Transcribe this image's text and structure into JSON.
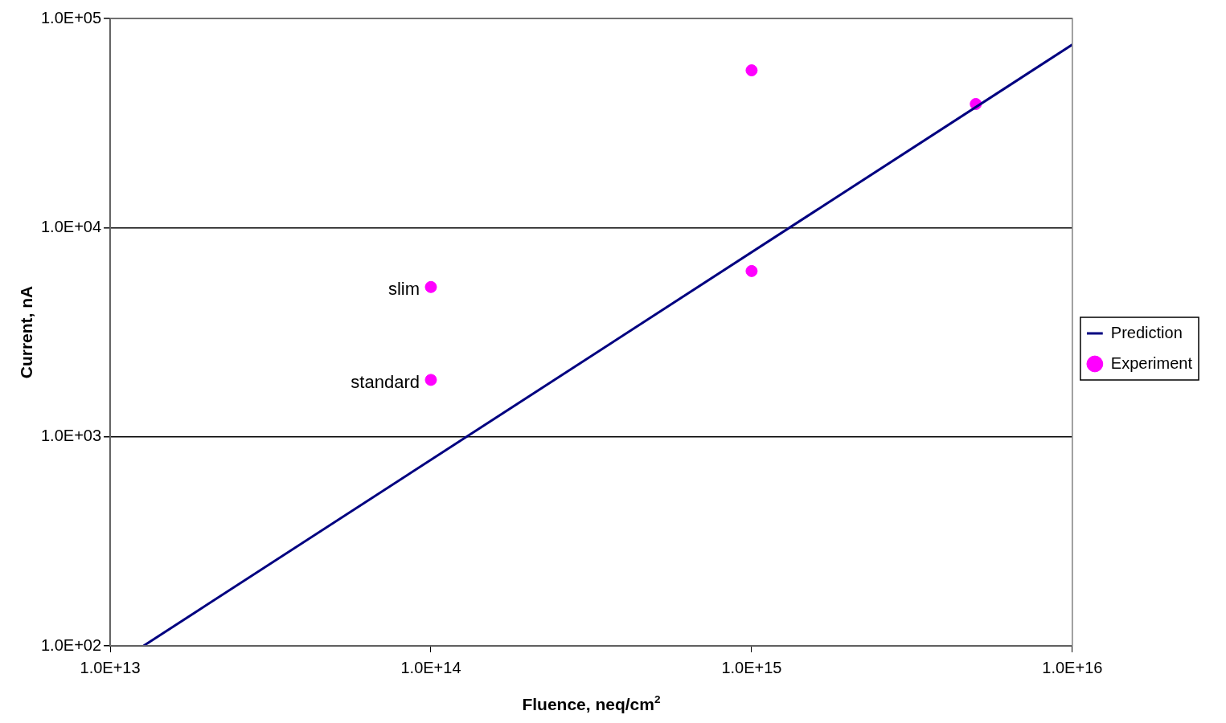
{
  "chart_data": {
    "type": "scatter",
    "xlabel": "Fluence, neq/cm$^{2}$",
    "ylabel": "Current, nA",
    "log": "xy",
    "grid": "y",
    "legend": "right",
    "xlim": [
      10000000000000.0,
      1e+16
    ],
    "ylim": [
      100,
      100000
    ],
    "xticks": [
      {
        "value": 10000000000000.0,
        "label": "1.0E+13"
      },
      {
        "value": 100000000000000.0,
        "label": "1.0E+14"
      },
      {
        "value": 1000000000000000.0,
        "label": "1.0E+15"
      },
      {
        "value": 1e+16,
        "label": "1.0E+16"
      }
    ],
    "yticks": [
      {
        "value": 100,
        "label": "1.0E+02"
      },
      {
        "value": 1000,
        "label": "1.0E+03"
      },
      {
        "value": 10000,
        "label": "1.0E+04"
      },
      {
        "value": 100000,
        "label": "1.0E+05"
      }
    ],
    "series": [
      {
        "name": "Prediction",
        "type": "line",
        "color": "#000080",
        "marker": "none",
        "line_style": "solid",
        "x": [
          12700000000000.0,
          1e+16
        ],
        "values": [
          100,
          75000
        ]
      },
      {
        "name": "Experiment",
        "type": "scatter",
        "color": "#ff00ff",
        "marker": "circle",
        "x": [
          100000000000000.0,
          100000000000000.0,
          1000000000000000.0,
          1000000000000000.0,
          5000000000000000.0
        ],
        "values": [
          5200,
          1870,
          56500,
          6200,
          39000
        ],
        "value_labels": [
          "slim",
          "standard",
          null,
          null,
          null
        ]
      }
    ]
  }
}
